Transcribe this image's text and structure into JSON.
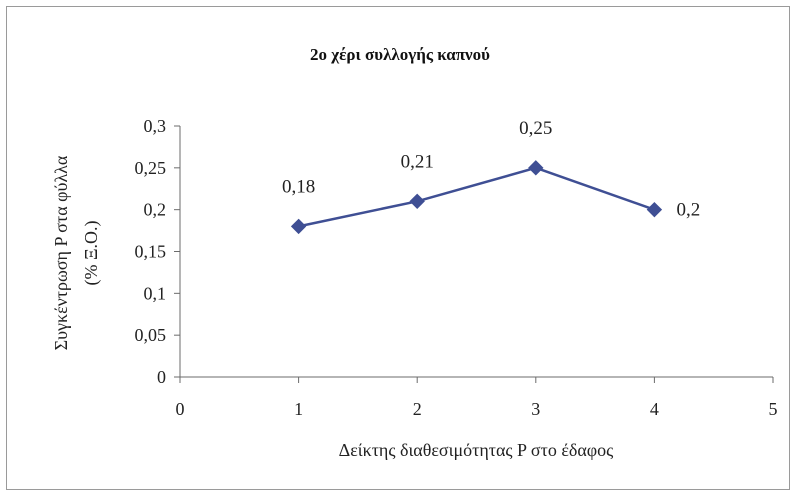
{
  "chart_data": {
    "type": "line",
    "title": "2ο χέρι συλλογής καπνού",
    "xlabel": "Δείκτης διαθεσιμότητας P στο έδαφος",
    "ylabel_line1": "Συγκέντρωση P στα φύλλα",
    "ylabel_line2": "(% Ξ.Ο.)",
    "x": [
      1,
      2,
      3,
      4
    ],
    "values": [
      0.18,
      0.21,
      0.25,
      0.2
    ],
    "data_labels": [
      "0,18",
      "0,21",
      "0,25",
      "0,2"
    ],
    "xlim": [
      0,
      5
    ],
    "ylim": [
      0,
      0.3
    ],
    "x_ticks": [
      "0",
      "1",
      "2",
      "3",
      "4",
      "5"
    ],
    "y_ticks": [
      "0",
      "0,05",
      "0,1",
      "0,15",
      "0,2",
      "0,25",
      "0,3"
    ],
    "grid": false,
    "legend": "none",
    "series_color": "#3f4f94",
    "axis_color": "#6b6b6b"
  }
}
